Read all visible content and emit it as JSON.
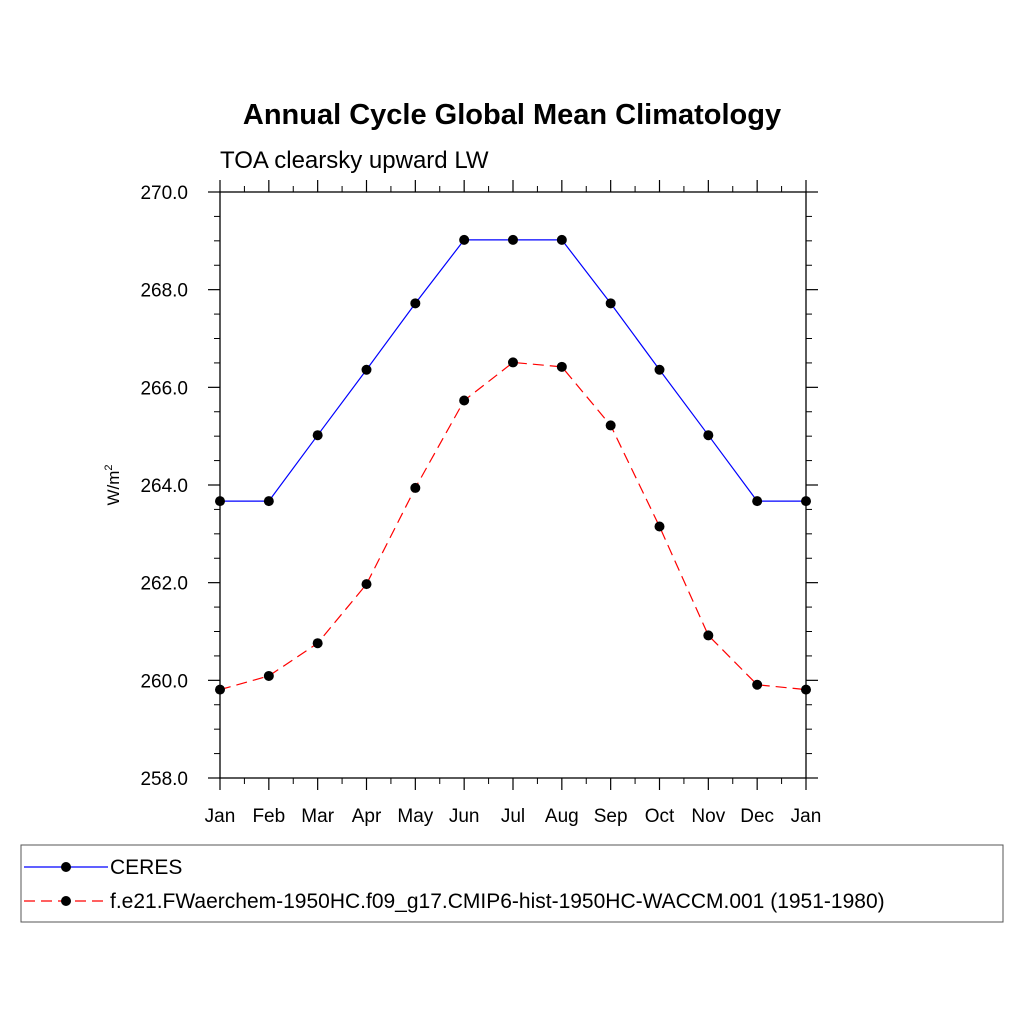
{
  "chart_data": {
    "type": "line",
    "title": "Annual Cycle Global Mean Climatology",
    "subtitle": "TOA clearsky upward LW",
    "ylabel_base": "W/m",
    "ylabel_sup": "2",
    "categories": [
      "Jan",
      "Feb",
      "Mar",
      "Apr",
      "May",
      "Jun",
      "Jul",
      "Aug",
      "Sep",
      "Oct",
      "Nov",
      "Dec",
      "Jan"
    ],
    "ylim": [
      258.0,
      270.0
    ],
    "yticks": [
      "258.0",
      "260.0",
      "262.0",
      "264.0",
      "266.0",
      "268.0",
      "270.0"
    ],
    "grid": false,
    "legend_position": "bottom",
    "series": [
      {
        "name": "CERES",
        "color": "#0000ff",
        "dash": "solid",
        "values": [
          263.67,
          263.67,
          265.02,
          266.36,
          267.72,
          269.02,
          269.02,
          269.02,
          267.72,
          266.36,
          265.02,
          263.67,
          263.67
        ]
      },
      {
        "name": "f.e21.FWaerchem-1950HC.f09_g17.CMIP6-hist-1950HC-WACCM.001 (1951-1980)",
        "color": "#ff0000",
        "dash": "dashed",
        "values": [
          259.81,
          260.09,
          260.76,
          261.97,
          263.94,
          265.73,
          266.51,
          266.42,
          265.22,
          263.15,
          260.92,
          259.91,
          259.81
        ]
      }
    ]
  }
}
